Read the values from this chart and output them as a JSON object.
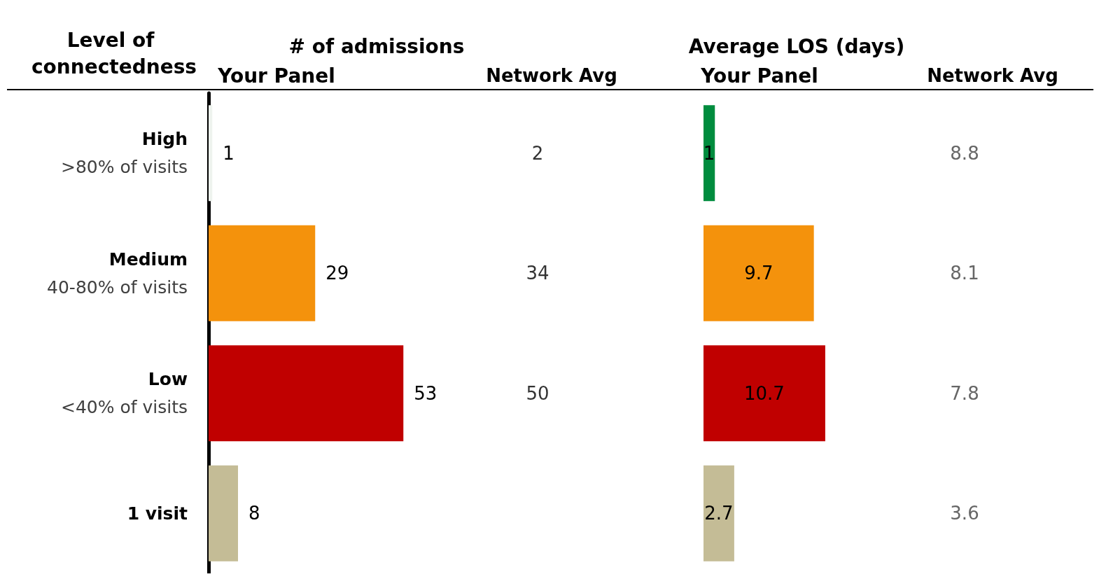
{
  "chart_data": [
    {
      "type": "bar",
      "orientation": "horizontal",
      "title": "# of admissions",
      "ylabel": "Level of connectedness",
      "categories": [
        "High\n>80% of visits",
        "Medium\n40-80% of visits",
        "Low\n<40% of visits",
        "1 visit"
      ],
      "series": [
        {
          "name": "Your Panel",
          "colors": [
            "#eef3ee",
            "#f4920c",
            "#c00000",
            "#c4bc96"
          ],
          "values": [
            1,
            29,
            53,
            8
          ]
        }
      ],
      "data_labels": true,
      "tick_labels": "y"
    },
    {
      "type": "other",
      "title": "Network Avg",
      "categories": [
        null,
        null,
        null,
        null
      ],
      "values": [
        2,
        34,
        50,
        null
      ],
      "color": "#000000",
      "data_labels": true
    },
    {
      "type": "bar",
      "orientation": "horizontal",
      "title": "Average LOS (days)",
      "categories": [
        null,
        null,
        null,
        null
      ],
      "series": [
        {
          "name": "Your Panel",
          "colors": [
            "#008c3e",
            "#f4920c",
            "#c00000",
            "#c4bc96"
          ],
          "values": [
            1,
            9.7,
            10.7,
            2.7
          ]
        }
      ],
      "data_labels": true,
      "tick_labels": false
    },
    {
      "type": "other",
      "title": "Network Avg",
      "categories": [
        null,
        null,
        null,
        null
      ],
      "values": [
        8.8,
        8.1,
        7.8,
        3.6
      ],
      "color": "#404040",
      "data_labels": true
    }
  ]
}
